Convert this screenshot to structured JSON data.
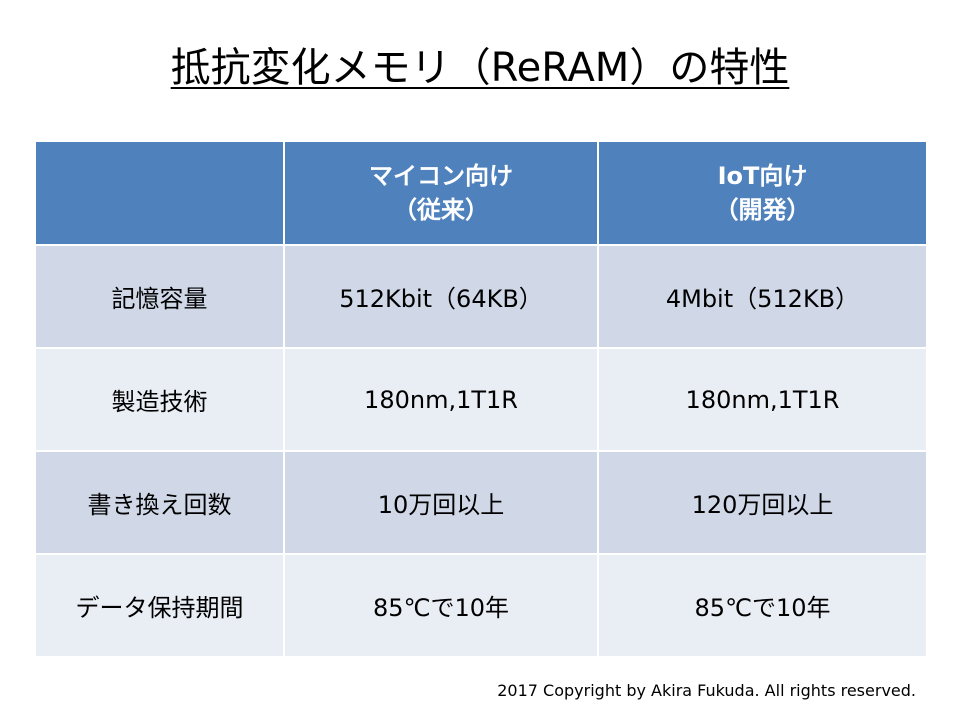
{
  "title": "抵抗変化メモリ（ReRAM）の特性",
  "table": {
    "headers": [
      {
        "line1": "",
        "line2": ""
      },
      {
        "line1": "マイコン向け",
        "line2": "（従来）"
      },
      {
        "line1": "IoT向け",
        "line2": "（開発）"
      }
    ],
    "rows": [
      {
        "label": "記憶容量",
        "cells": [
          "512Kbit（64KB）",
          "4Mbit（512KB）"
        ]
      },
      {
        "label": "製造技術",
        "cells": [
          "180nm,1T1R",
          "180nm,1T1R"
        ]
      },
      {
        "label": "書き換え回数",
        "cells": [
          "10万回以上",
          "120万回以上"
        ]
      },
      {
        "label": "データ保持期間",
        "cells": [
          "85℃で10年",
          "85℃で10年"
        ]
      }
    ]
  },
  "footer": {
    "copyright": "2017 Copyright by Akira Fukuda. All rights reserved."
  },
  "colors": {
    "header_bg": "#4f81bd",
    "row_dark": "#d0d8e8",
    "row_light": "#e9edf4"
  }
}
